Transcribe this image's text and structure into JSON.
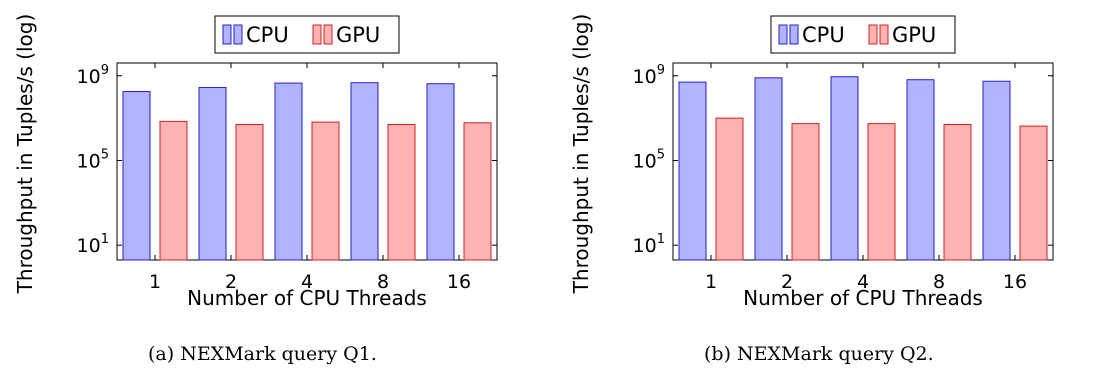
{
  "chart_data": [
    {
      "type": "bar",
      "caption": "(a) NEXMark query Q1.",
      "xlabel": "Number of CPU Threads",
      "ylabel": "Throughput in Tuples/s (log)",
      "yscale": "log",
      "ylim": [
        2,
        4000000000
      ],
      "yticks": [
        {
          "value": 10,
          "base": "10",
          "exp": "1"
        },
        {
          "value": 100000,
          "base": "10",
          "exp": "5"
        },
        {
          "value": 1000000000,
          "base": "10",
          "exp": "9"
        }
      ],
      "categories": [
        "1",
        "2",
        "4",
        "8",
        "16"
      ],
      "legend_position": "top-center",
      "series": [
        {
          "name": "CPU",
          "fill": "#b3b3ff",
          "stroke": "#2222cc",
          "values": [
            180000000,
            280000000,
            450000000,
            470000000,
            420000000
          ]
        },
        {
          "name": "GPU",
          "fill": "#ffb3b3",
          "stroke": "#cc2222",
          "values": [
            7000000,
            5000000,
            6500000,
            5000000,
            6000000
          ]
        }
      ]
    },
    {
      "type": "bar",
      "caption": "(b) NEXMark query Q2.",
      "xlabel": "Number of CPU Threads",
      "ylabel": "Throughput in Tuples/s (log)",
      "yscale": "log",
      "ylim": [
        2,
        4000000000
      ],
      "yticks": [
        {
          "value": 10,
          "base": "10",
          "exp": "1"
        },
        {
          "value": 100000,
          "base": "10",
          "exp": "5"
        },
        {
          "value": 1000000000,
          "base": "10",
          "exp": "9"
        }
      ],
      "categories": [
        "1",
        "2",
        "4",
        "8",
        "16"
      ],
      "legend_position": "top-center",
      "series": [
        {
          "name": "CPU",
          "fill": "#b3b3ff",
          "stroke": "#2222cc",
          "values": [
            500000000,
            800000000,
            900000000,
            650000000,
            550000000
          ]
        },
        {
          "name": "GPU",
          "fill": "#ffb3b3",
          "stroke": "#cc2222",
          "values": [
            10000000,
            5500000,
            5500000,
            5000000,
            4200000
          ]
        }
      ]
    }
  ]
}
